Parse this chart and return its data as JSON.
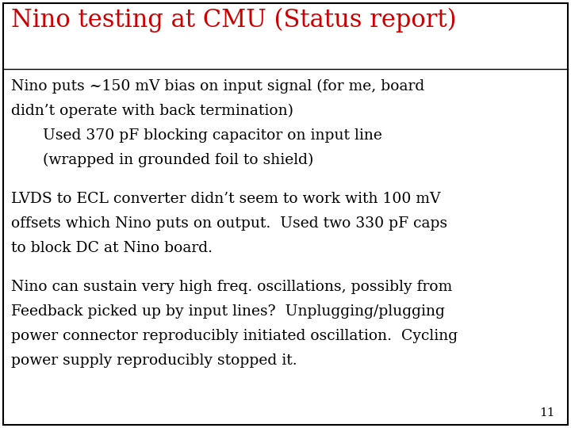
{
  "title": "Nino testing at CMU (Status report)",
  "title_color": "#cc0000",
  "title_fontsize": 22,
  "title_font": "serif",
  "background_color": "#ffffff",
  "border_color": "#000000",
  "text_color": "#000000",
  "text_fontsize": 13.5,
  "text_font": "serif",
  "page_number": "11",
  "page_number_fontsize": 11,
  "paragraphs": [
    {
      "lines": [
        {
          "text": "Nino puts ~150 mV bias on input signal (for me, board",
          "indent": 0
        },
        {
          "text": "didn’t operate with back termination)",
          "indent": 0
        },
        {
          "text": "Used 370 pF blocking capacitor on input line",
          "indent": 1
        },
        {
          "text": "(wrapped in grounded foil to shield)",
          "indent": 1
        }
      ]
    },
    {
      "lines": [
        {
          "text": "LVDS to ECL converter didn’t seem to work with 100 mV",
          "indent": 0
        },
        {
          "text": "offsets which Nino puts on output.  Used two 330 pF caps",
          "indent": 0
        },
        {
          "text": "to block DC at Nino board.",
          "indent": 0
        }
      ]
    },
    {
      "lines": [
        {
          "text": "Nino can sustain very high freq. oscillations, possibly from",
          "indent": 0
        },
        {
          "text": "Feedback picked up by input lines?  Unplugging/plugging",
          "indent": 0
        },
        {
          "text": "power connector reproducibly initiated oscillation.  Cycling",
          "indent": 0
        },
        {
          "text": "power supply reproducibly stopped it.",
          "indent": 0
        }
      ]
    }
  ]
}
